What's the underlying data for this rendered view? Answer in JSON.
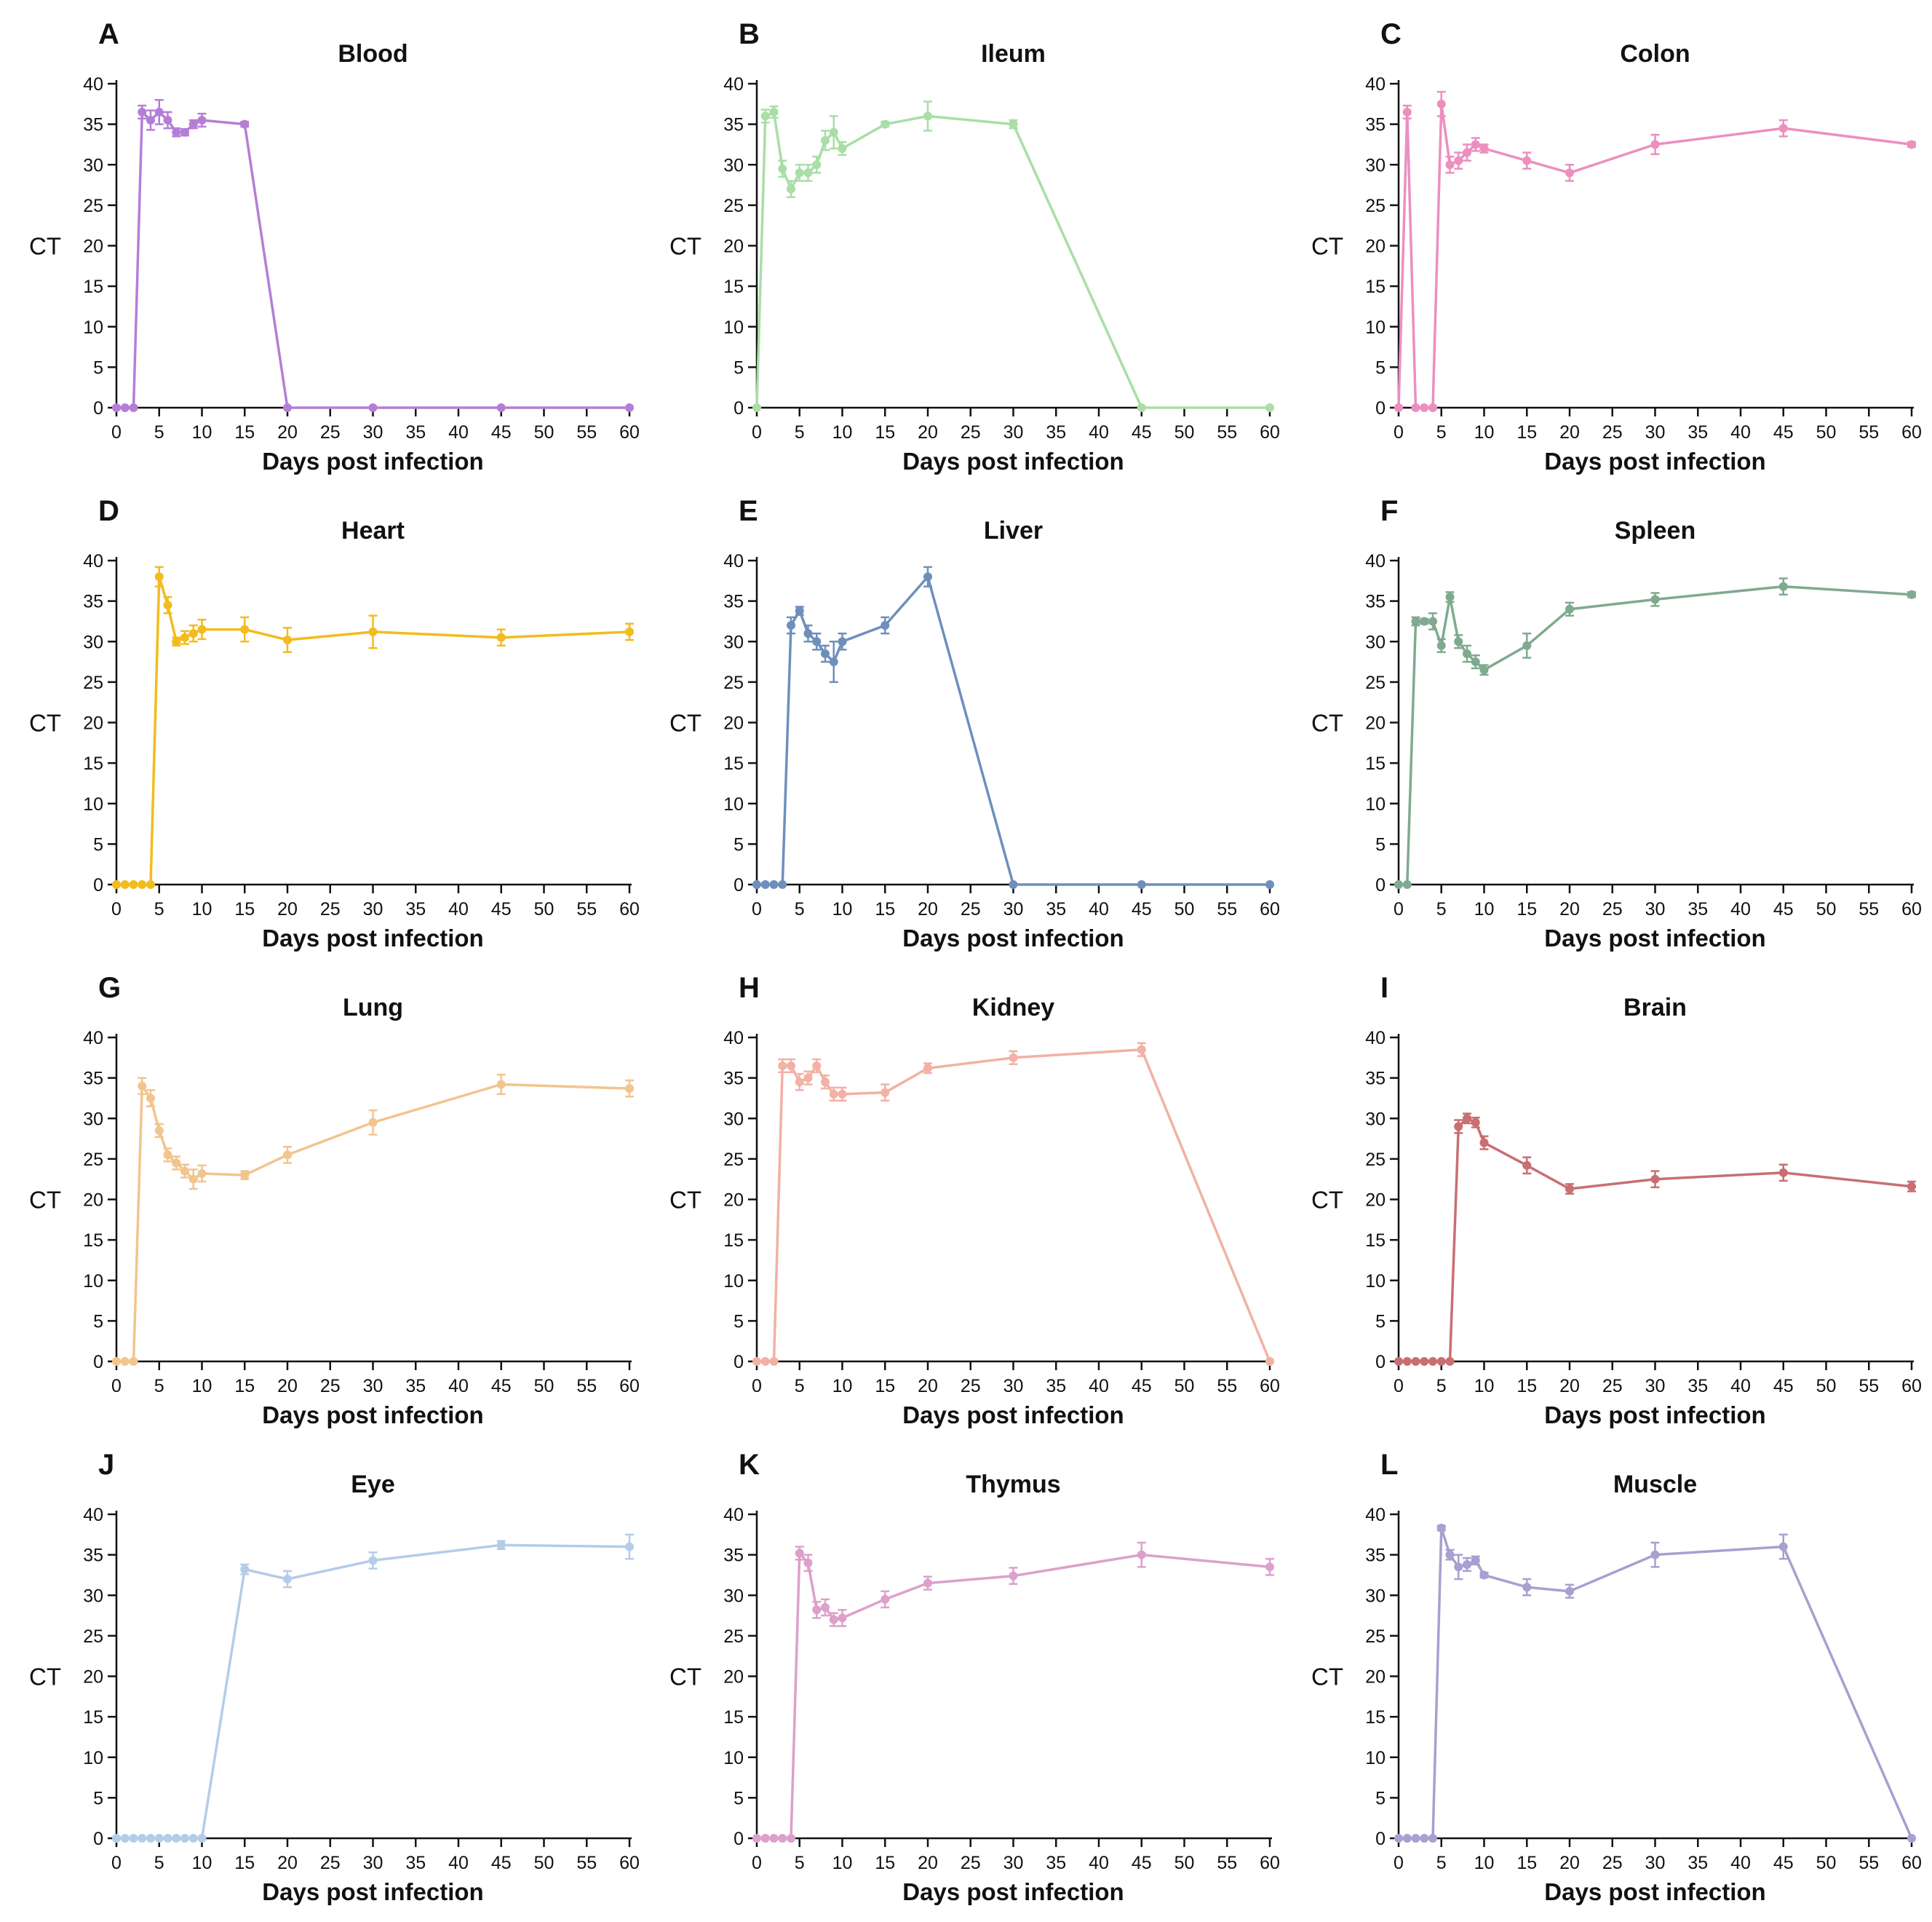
{
  "chart_data": [
    {
      "type": "line",
      "letter": "A",
      "title": "Blood",
      "color": "#b57ed6",
      "xlabel": "Days post infection",
      "ylabel": "CT",
      "xlim": [
        0,
        60
      ],
      "ylim": [
        0,
        40
      ],
      "xticks": [
        "0",
        "5",
        "10",
        "15",
        "20",
        "25",
        "30",
        "35",
        "40",
        "45",
        "50",
        "55",
        "60"
      ],
      "yticks": [
        "0",
        "5",
        "10",
        "15",
        "20",
        "25",
        "30",
        "35",
        "40"
      ],
      "x": [
        0,
        1,
        2,
        3,
        4,
        5,
        6,
        7,
        8,
        9,
        10,
        15,
        20,
        30,
        45,
        60
      ],
      "y": [
        0,
        0,
        0,
        36.5,
        35.5,
        36.5,
        35.5,
        34,
        34,
        35,
        35.5,
        35,
        0,
        0,
        0,
        0
      ],
      "err": [
        0,
        0,
        0,
        0.8,
        1.2,
        1.5,
        1,
        0.5,
        0.4,
        0.5,
        0.8,
        0.3,
        0,
        0,
        0,
        0
      ]
    },
    {
      "type": "line",
      "letter": "B",
      "title": "Ileum",
      "color": "#a9dea6",
      "xlabel": "Days post infection",
      "ylabel": "CT",
      "xlim": [
        0,
        60
      ],
      "ylim": [
        0,
        40
      ],
      "xticks": [
        "0",
        "5",
        "10",
        "15",
        "20",
        "25",
        "30",
        "35",
        "40",
        "45",
        "50",
        "55",
        "60"
      ],
      "yticks": [
        "0",
        "5",
        "10",
        "15",
        "20",
        "25",
        "30",
        "35",
        "40"
      ],
      "x": [
        0,
        1,
        2,
        3,
        4,
        5,
        6,
        7,
        8,
        9,
        10,
        15,
        20,
        30,
        45,
        60
      ],
      "y": [
        0,
        36,
        36.5,
        29.5,
        27,
        29,
        29,
        30,
        33,
        34,
        32,
        35,
        36,
        35,
        0,
        0
      ],
      "err": [
        0,
        0.8,
        0.7,
        1,
        1,
        1,
        1,
        1,
        1.2,
        2,
        0.8,
        0.3,
        1.8,
        0.5,
        0,
        0
      ]
    },
    {
      "type": "line",
      "letter": "C",
      "title": "Colon",
      "color": "#ec8fbf",
      "xlabel": "Days post infection",
      "ylabel": "CT",
      "xlim": [
        0,
        60
      ],
      "ylim": [
        0,
        40
      ],
      "xticks": [
        "0",
        "5",
        "10",
        "15",
        "20",
        "25",
        "30",
        "35",
        "40",
        "45",
        "50",
        "55",
        "60"
      ],
      "yticks": [
        "0",
        "5",
        "10",
        "15",
        "20",
        "25",
        "30",
        "35",
        "40"
      ],
      "x": [
        0,
        1,
        2,
        3,
        4,
        5,
        6,
        7,
        8,
        9,
        10,
        15,
        20,
        30,
        45,
        60
      ],
      "y": [
        0,
        36.5,
        0,
        0,
        0,
        37.5,
        30,
        30.5,
        31.5,
        32.5,
        32,
        30.5,
        29,
        32.5,
        34.5,
        32.5
      ],
      "err": [
        0,
        0.8,
        0,
        0,
        0,
        1.5,
        1,
        1,
        1,
        0.8,
        0.5,
        1,
        1,
        1.2,
        1,
        0.3
      ]
    },
    {
      "type": "line",
      "letter": "D",
      "title": "Heart",
      "color": "#f2bc1c",
      "xlabel": "Days post infection",
      "ylabel": "CT",
      "xlim": [
        0,
        60
      ],
      "ylim": [
        0,
        40
      ],
      "xticks": [
        "0",
        "5",
        "10",
        "15",
        "20",
        "25",
        "30",
        "35",
        "40",
        "45",
        "50",
        "55",
        "60"
      ],
      "yticks": [
        "0",
        "5",
        "10",
        "15",
        "20",
        "25",
        "30",
        "35",
        "40"
      ],
      "x": [
        0,
        1,
        2,
        3,
        4,
        5,
        6,
        7,
        8,
        9,
        10,
        15,
        20,
        30,
        45,
        60
      ],
      "y": [
        0,
        0,
        0,
        0,
        0,
        38,
        34.5,
        30,
        30.5,
        31,
        31.5,
        31.5,
        30.2,
        31.2,
        30.5,
        31.2
      ],
      "err": [
        0,
        0,
        0,
        0,
        0,
        1.2,
        1,
        0.5,
        0.8,
        1,
        1.2,
        1.5,
        1.5,
        2,
        1,
        1
      ]
    },
    {
      "type": "line",
      "letter": "E",
      "title": "Liver",
      "color": "#6e8fbc",
      "xlabel": "Days post infection",
      "ylabel": "CT",
      "xlim": [
        0,
        60
      ],
      "ylim": [
        0,
        40
      ],
      "xticks": [
        "0",
        "5",
        "10",
        "15",
        "20",
        "25",
        "30",
        "35",
        "40",
        "45",
        "50",
        "55",
        "60"
      ],
      "yticks": [
        "0",
        "5",
        "10",
        "15",
        "20",
        "25",
        "30",
        "35",
        "40"
      ],
      "x": [
        0,
        1,
        2,
        3,
        4,
        5,
        6,
        7,
        8,
        9,
        10,
        15,
        20,
        30,
        45,
        60
      ],
      "y": [
        0,
        0,
        0,
        0,
        32,
        33.8,
        31,
        30,
        28.5,
        27.5,
        30,
        32,
        38,
        0,
        0,
        0
      ],
      "err": [
        0,
        0,
        0,
        0,
        1,
        0.5,
        1,
        1,
        1,
        2.5,
        1,
        1,
        1.2,
        0,
        0,
        0
      ]
    },
    {
      "type": "line",
      "letter": "F",
      "title": "Spleen",
      "color": "#7faa8f",
      "xlabel": "Days post infection",
      "ylabel": "CT",
      "xlim": [
        0,
        60
      ],
      "ylim": [
        0,
        40
      ],
      "xticks": [
        "0",
        "5",
        "10",
        "15",
        "20",
        "25",
        "30",
        "35",
        "40",
        "45",
        "50",
        "55",
        "60"
      ],
      "yticks": [
        "0",
        "5",
        "10",
        "15",
        "20",
        "25",
        "30",
        "35",
        "40"
      ],
      "x": [
        0,
        1,
        2,
        3,
        4,
        5,
        6,
        7,
        8,
        9,
        10,
        15,
        20,
        30,
        45,
        60
      ],
      "y": [
        0,
        0,
        32.5,
        32.5,
        32.5,
        29.5,
        35.5,
        30,
        28.5,
        27.5,
        26.5,
        29.5,
        34,
        35.2,
        36.8,
        35.8
      ],
      "err": [
        0,
        0,
        0.5,
        0.3,
        1,
        0.8,
        0.6,
        0.8,
        1,
        0.8,
        0.6,
        1.5,
        0.8,
        0.8,
        1,
        0.3
      ]
    },
    {
      "type": "line",
      "letter": "G",
      "title": "Lung",
      "color": "#f2c48e",
      "xlabel": "Days post infection",
      "ylabel": "CT",
      "xlim": [
        0,
        60
      ],
      "ylim": [
        0,
        40
      ],
      "xticks": [
        "0",
        "5",
        "10",
        "15",
        "20",
        "25",
        "30",
        "35",
        "40",
        "45",
        "50",
        "55",
        "60"
      ],
      "yticks": [
        "0",
        "5",
        "10",
        "15",
        "20",
        "25",
        "30",
        "35",
        "40"
      ],
      "x": [
        0,
        1,
        2,
        3,
        4,
        5,
        6,
        7,
        8,
        9,
        10,
        15,
        20,
        30,
        45,
        60
      ],
      "y": [
        0,
        0,
        0,
        34,
        32.5,
        28.5,
        25.5,
        24.5,
        23.5,
        22.5,
        23.2,
        23,
        25.5,
        29.5,
        34.2,
        33.7
      ],
      "err": [
        0,
        0,
        0,
        1,
        1,
        0.8,
        0.8,
        0.8,
        0.8,
        1.2,
        1,
        0.5,
        1,
        1.5,
        1.2,
        1
      ]
    },
    {
      "type": "line",
      "letter": "H",
      "title": "Kidney",
      "color": "#f2b1a4",
      "xlabel": "Days post infection",
      "ylabel": "CT",
      "xlim": [
        0,
        60
      ],
      "ylim": [
        0,
        40
      ],
      "xticks": [
        "0",
        "5",
        "10",
        "15",
        "20",
        "25",
        "30",
        "35",
        "40",
        "45",
        "50",
        "55",
        "60"
      ],
      "yticks": [
        "0",
        "5",
        "10",
        "15",
        "20",
        "25",
        "30",
        "35",
        "40"
      ],
      "x": [
        0,
        1,
        2,
        3,
        4,
        5,
        6,
        7,
        8,
        9,
        10,
        15,
        20,
        30,
        45,
        60
      ],
      "y": [
        0,
        0,
        0,
        36.5,
        36.5,
        34.5,
        35,
        36.5,
        34.5,
        33,
        33,
        33.2,
        36.2,
        37.5,
        38.5,
        0
      ],
      "err": [
        0,
        0,
        0,
        0.8,
        0.8,
        1,
        0.8,
        0.8,
        0.8,
        0.8,
        0.8,
        1,
        0.6,
        0.8,
        0.8,
        0
      ]
    },
    {
      "type": "line",
      "letter": "I",
      "title": "Brain",
      "color": "#c96e72",
      "xlabel": "Days post infection",
      "ylabel": "CT",
      "xlim": [
        0,
        60
      ],
      "ylim": [
        0,
        40
      ],
      "xticks": [
        "0",
        "5",
        "10",
        "15",
        "20",
        "25",
        "30",
        "35",
        "40",
        "45",
        "50",
        "55",
        "60"
      ],
      "yticks": [
        "0",
        "5",
        "10",
        "15",
        "20",
        "25",
        "30",
        "35",
        "40"
      ],
      "x": [
        0,
        1,
        2,
        3,
        4,
        5,
        6,
        7,
        8,
        9,
        10,
        15,
        20,
        30,
        45,
        60
      ],
      "y": [
        0,
        0,
        0,
        0,
        0,
        0,
        0,
        29,
        30,
        29.5,
        27,
        24.2,
        21.3,
        22.5,
        23.3,
        21.6
      ],
      "err": [
        0,
        0,
        0,
        0,
        0,
        0,
        0,
        0.8,
        0.6,
        0.6,
        0.8,
        1,
        0.6,
        1,
        1,
        0.6
      ]
    },
    {
      "type": "line",
      "letter": "J",
      "title": "Eye",
      "color": "#b3cde9",
      "xlabel": "Days post infection",
      "ylabel": "CT",
      "xlim": [
        0,
        60
      ],
      "ylim": [
        0,
        40
      ],
      "xticks": [
        "0",
        "5",
        "10",
        "15",
        "20",
        "25",
        "30",
        "35",
        "40",
        "45",
        "50",
        "55",
        "60"
      ],
      "yticks": [
        "0",
        "5",
        "10",
        "15",
        "20",
        "25",
        "30",
        "35",
        "40"
      ],
      "x": [
        0,
        1,
        2,
        3,
        4,
        5,
        6,
        7,
        8,
        9,
        10,
        15,
        20,
        30,
        45,
        60
      ],
      "y": [
        0,
        0,
        0,
        0,
        0,
        0,
        0,
        0,
        0,
        0,
        0,
        33.2,
        32,
        34.3,
        36.2,
        36
      ],
      "err": [
        0,
        0,
        0,
        0,
        0,
        0,
        0,
        0,
        0,
        0,
        0,
        0.6,
        1,
        1,
        0.5,
        1.5
      ]
    },
    {
      "type": "line",
      "letter": "K",
      "title": "Thymus",
      "color": "#dca0cb",
      "xlabel": "Days post infection",
      "ylabel": "CT",
      "xlim": [
        0,
        60
      ],
      "ylim": [
        0,
        40
      ],
      "xticks": [
        "0",
        "5",
        "10",
        "15",
        "20",
        "25",
        "30",
        "35",
        "40",
        "45",
        "50",
        "55",
        "60"
      ],
      "yticks": [
        "0",
        "5",
        "10",
        "15",
        "20",
        "25",
        "30",
        "35",
        "40"
      ],
      "x": [
        0,
        1,
        2,
        3,
        4,
        5,
        6,
        7,
        8,
        9,
        10,
        15,
        20,
        30,
        45,
        60
      ],
      "y": [
        0,
        0,
        0,
        0,
        0,
        35.2,
        34,
        28.2,
        28.5,
        27,
        27.2,
        29.5,
        31.5,
        32.4,
        35,
        33.5
      ],
      "err": [
        0,
        0,
        0,
        0,
        0,
        0.8,
        1,
        1,
        1,
        0.8,
        1,
        1,
        0.8,
        1,
        1.5,
        1
      ]
    },
    {
      "type": "line",
      "letter": "L",
      "title": "Muscle",
      "color": "#a99fd0",
      "xlabel": "Days post infection",
      "ylabel": "CT",
      "xlim": [
        0,
        60
      ],
      "ylim": [
        0,
        40
      ],
      "xticks": [
        "0",
        "5",
        "10",
        "15",
        "20",
        "25",
        "30",
        "35",
        "40",
        "45",
        "50",
        "55",
        "60"
      ],
      "yticks": [
        "0",
        "5",
        "10",
        "15",
        "20",
        "25",
        "30",
        "35",
        "40"
      ],
      "x": [
        0,
        1,
        2,
        3,
        4,
        5,
        6,
        7,
        8,
        9,
        10,
        15,
        20,
        30,
        45,
        60
      ],
      "y": [
        0,
        0,
        0,
        0,
        0,
        38.3,
        35,
        33.5,
        33.8,
        34.3,
        32.5,
        31,
        30.5,
        35,
        36,
        0
      ],
      "err": [
        0,
        0,
        0,
        0,
        0,
        0.3,
        0.6,
        1.5,
        0.8,
        0.5,
        0.3,
        1,
        0.8,
        1.5,
        1.5,
        0
      ]
    }
  ]
}
